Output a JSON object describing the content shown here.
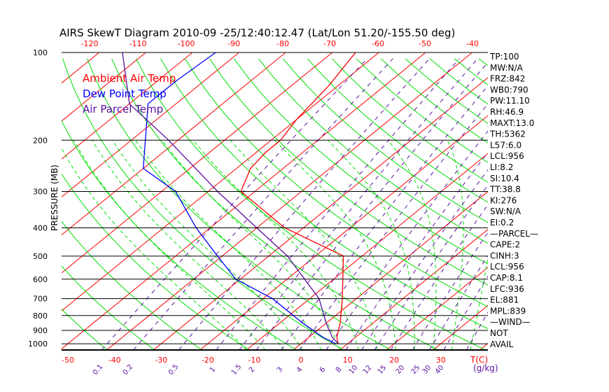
{
  "chart_data": {
    "type": "line",
    "title": "AIRS SkewT Diagram 2010-09 -25/12:40:12.47 (Lat/Lon 51.20/-155.50 deg)",
    "ylabel": "PRESSURE (MB)",
    "xlabel": "T(C)",
    "mixing_ratio_label": "(g/kg)",
    "pressure_ticks": [
      100,
      200,
      300,
      400,
      500,
      600,
      700,
      800,
      900,
      1000
    ],
    "top_temp_ticks": [
      -120,
      -110,
      -100,
      -90,
      -80,
      -70,
      -60,
      -50,
      -40
    ],
    "bottom_temp_ticks": [
      -50,
      -40,
      -30,
      -20,
      -10,
      0,
      10,
      20,
      30
    ],
    "mixing_ratio_ticks": [
      "0.1",
      "0.2",
      "0.5",
      "1",
      "1.5",
      "2",
      "3",
      "4",
      "6",
      "8",
      "10",
      "12",
      "15",
      "20",
      "25",
      "30",
      "40"
    ],
    "legend": [
      {
        "label": "Ambient Air Temp",
        "color": "#ff0000"
      },
      {
        "label": "Dew Point Temp",
        "color": "#0000ff"
      },
      {
        "label": "Air Parcel Temp",
        "color": "#5a0fa0"
      }
    ],
    "series": [
      {
        "name": "Ambient Air Temp",
        "color": "#ff0000",
        "p": [
          1000,
          950,
          850,
          700,
          500,
          400,
          300,
          250,
          220,
          200,
          170,
          130,
          100
        ],
        "t": [
          8,
          6,
          3,
          -3,
          -14,
          -34,
          -53,
          -57,
          -58,
          -58,
          -60,
          -62,
          -65
        ]
      },
      {
        "name": "Dew Point Temp",
        "color": "#0000ff",
        "p": [
          1000,
          950,
          850,
          700,
          600,
          500,
          400,
          300,
          250,
          150,
          125,
          100
        ],
        "t": [
          7.5,
          3,
          -5,
          -18,
          -31,
          -41,
          -53,
          -67,
          -80,
          -96,
          -96,
          -95
        ]
      },
      {
        "name": "Air Parcel Temp",
        "color": "#5a0fa0",
        "p": [
          1000,
          950,
          850,
          700,
          500,
          400,
          300,
          200,
          150,
          100
        ],
        "t": [
          8,
          5,
          0,
          -8,
          -26,
          -40,
          -58,
          -82,
          -100,
          -115
        ]
      }
    ]
  },
  "indices": [
    "TP:100",
    "MW:N/A",
    "FRZ:842",
    "WB0:790",
    "PW:11.10",
    "RH:46.9",
    "MAXT:13.0",
    "TH:5362",
    "L57:6.0",
    "LCL:956",
    "LI:8.2",
    "SI:10.4",
    "TT:38.8",
    "KI:276",
    "SW:N/A",
    "EI:0.2",
    "—PARCEL—",
    "CAPE:2",
    "CINH:3",
    "LCL:956",
    "CAP:8.1",
    "LFC:936",
    "EL:881",
    "MPL:839",
    "—WIND—",
    "NOT",
    "AVAIL"
  ]
}
